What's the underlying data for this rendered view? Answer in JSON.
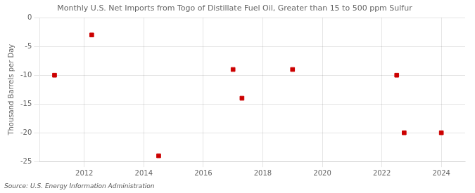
{
  "chart_data": {
    "type": "scatter",
    "title": "Monthly U.S. Net Imports from Togo of Distillate Fuel Oil, Greater than 15 to 500 ppm Sulfur",
    "ylabel": "Thousand Barrels per Day",
    "source": "Source: U.S. Energy Information Administration",
    "x": [
      2011.0,
      2012.25,
      2014.5,
      2017.0,
      2017.3,
      2019.0,
      2022.5,
      2022.75,
      2024.0
    ],
    "values": [
      -10.0,
      -3.0,
      -24.0,
      -9.0,
      -14.0,
      -9.0,
      -10.0,
      -20.0,
      -20.0
    ],
    "color": "#cc0000",
    "marker": "square",
    "xlim": [
      2010.5,
      2024.8
    ],
    "ylim": [
      -25,
      0
    ],
    "xticks": [
      2012,
      2014,
      2016,
      2018,
      2020,
      2022,
      2024
    ],
    "yticks": [
      0,
      -5,
      -10,
      -15,
      -20,
      -25
    ],
    "grid": true
  }
}
